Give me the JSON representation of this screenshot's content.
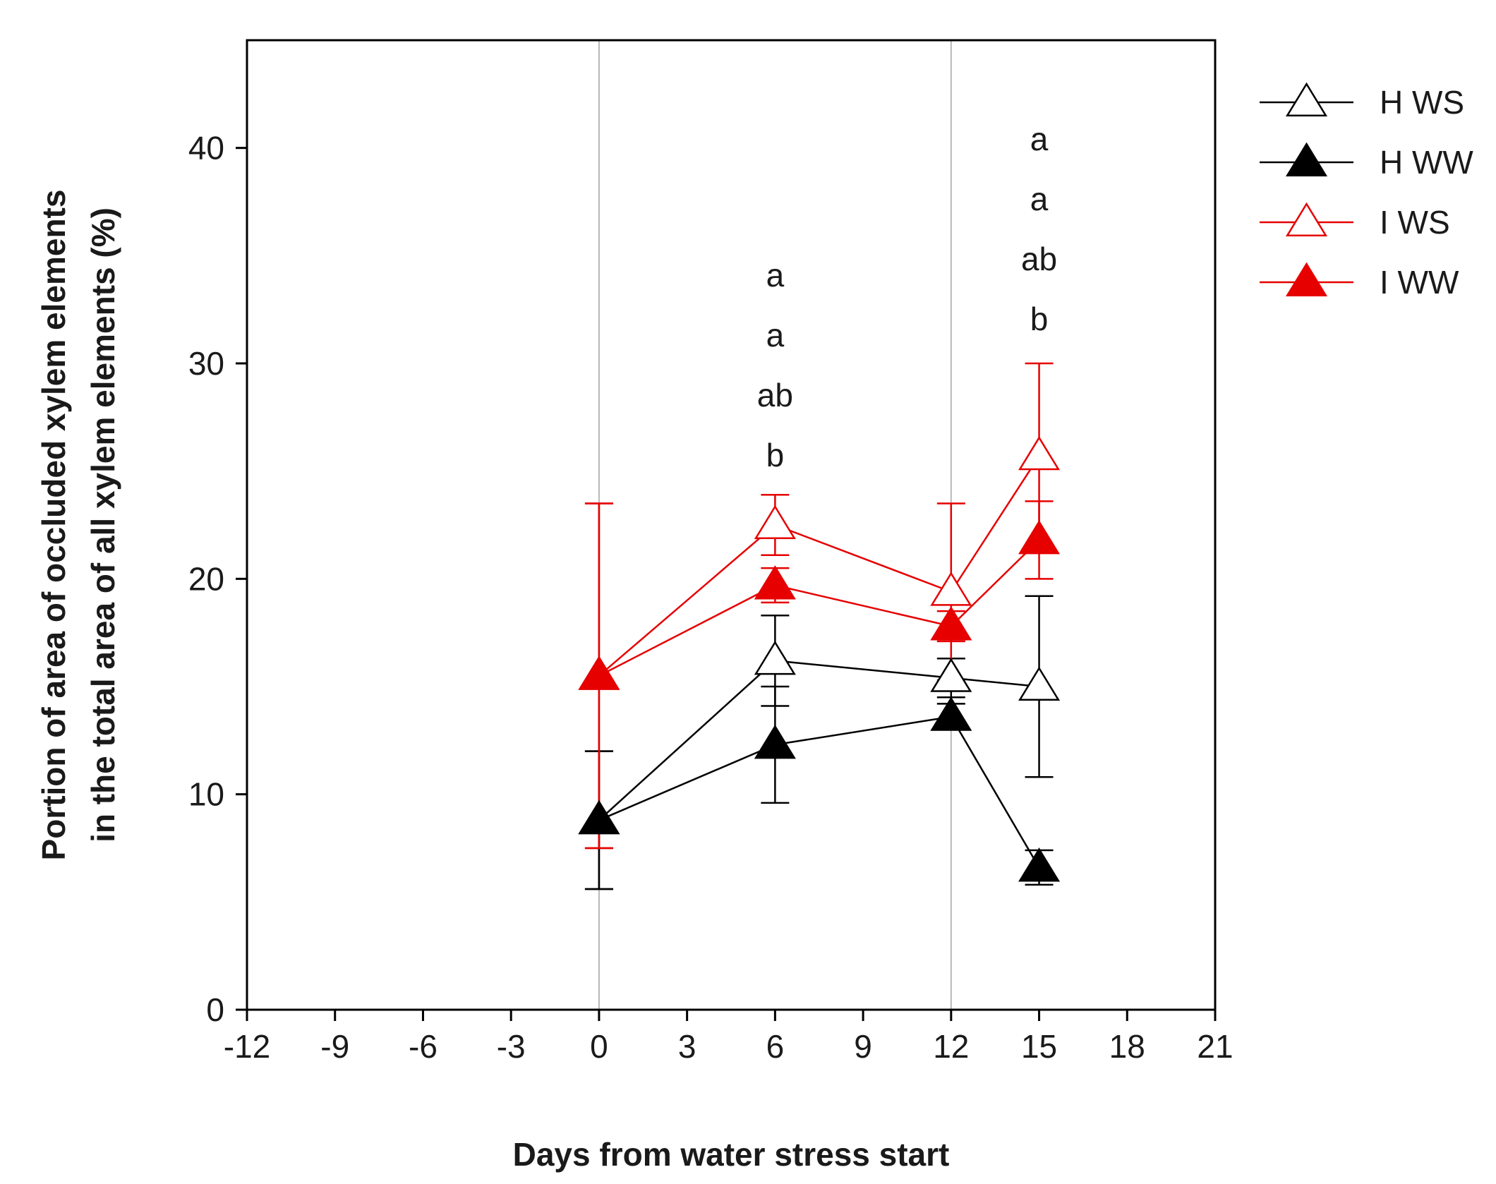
{
  "chart_data": {
    "type": "line",
    "title": "",
    "xlabel": "Days from water stress start",
    "ylabel_line1": "Portion of area of occluded xylem elements",
    "ylabel_line2": "in the total area of all xylem elements (%)",
    "xlim": [
      -12,
      21
    ],
    "ylim": [
      0,
      45
    ],
    "x_ticks": [
      -12,
      -9,
      -6,
      -3,
      0,
      3,
      6,
      9,
      12,
      15,
      18,
      21
    ],
    "x_tick_labels": [
      "-12",
      "-9",
      "-6",
      "-3",
      "0",
      "3",
      "6",
      "9",
      "12",
      "15",
      "18",
      "21"
    ],
    "y_ticks": [
      0,
      10,
      20,
      30,
      40
    ],
    "y_tick_labels": [
      "0",
      "10",
      "20",
      "30",
      "40"
    ],
    "vertical_reference_lines": [
      0,
      12
    ],
    "legend_position": "top-right, outside plot",
    "series": [
      {
        "name": "H WS",
        "color": "#000000",
        "marker": "open-triangle",
        "x": [
          0,
          6,
          12,
          15
        ],
        "y": [
          8.8,
          16.2,
          15.4,
          15.0
        ],
        "error": [
          3.2,
          2.1,
          0.9,
          4.2
        ]
      },
      {
        "name": "H WW",
        "color": "#000000",
        "marker": "filled-triangle",
        "x": [
          0,
          6,
          12,
          15
        ],
        "y": [
          8.8,
          12.3,
          13.6,
          6.6
        ],
        "error": [
          3.2,
          2.7,
          0.6,
          0.8
        ]
      },
      {
        "name": "I WS",
        "color": "#e60000",
        "marker": "open-triangle",
        "x": [
          0,
          6,
          12,
          15
        ],
        "y": [
          15.5,
          22.5,
          19.4,
          25.7
        ],
        "error": [
          8.0,
          1.4,
          4.1,
          4.3
        ]
      },
      {
        "name": "I WW",
        "color": "#e60000",
        "marker": "filled-triangle",
        "x": [
          0,
          6,
          12,
          15
        ],
        "y": [
          15.5,
          19.7,
          17.8,
          21.8
        ],
        "error": [
          8.0,
          0.8,
          0.7,
          1.8
        ]
      }
    ],
    "annotations": [
      {
        "x": 6,
        "labels": [
          "a",
          "a",
          "ab",
          "b"
        ]
      },
      {
        "x": 15,
        "labels": [
          "a",
          "a",
          "ab",
          "b"
        ]
      }
    ]
  }
}
